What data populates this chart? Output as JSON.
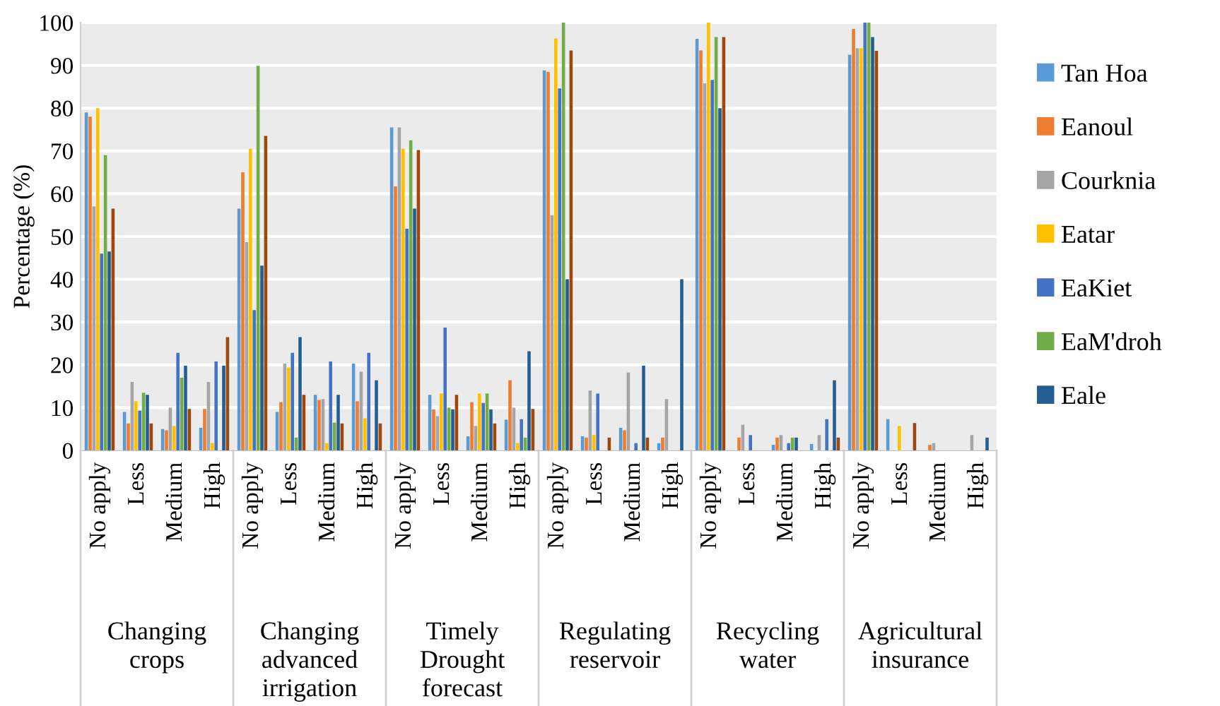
{
  "chart_data": {
    "type": "bar",
    "ylabel": "Percentage (%)",
    "categories": [
      "No apply",
      "Less",
      "Medium",
      "High",
      "No apply",
      "Less",
      "Medium",
      "High",
      "No apply",
      "Less",
      "Medium",
      "High",
      "No apply",
      "Less",
      "Medium",
      "High",
      "No apply",
      "Less",
      "Medium",
      "High",
      "No apply",
      "Less",
      "Medium",
      "High"
    ],
    "annotations": [
      "Changing\ncrops",
      "Changing\nadvanced\nirrigation",
      "Timely\nDrought\nforecast",
      "Regulating\nreservoir",
      "Recycling\nwater",
      "Agricultural\ninsurance"
    ],
    "series": [
      {
        "name": "Tan Hoa",
        "color": "#5b9bd5",
        "values": [
          79,
          9,
          5,
          5.3,
          56.5,
          9,
          13,
          20.3,
          75.5,
          13,
          3.3,
          7.2,
          88.8,
          3.3,
          5.3,
          1.7,
          96.2,
          0,
          1.3,
          1.5,
          92.5,
          7.3,
          0,
          0
        ]
      },
      {
        "name": "Eanoul",
        "color": "#ed7d31",
        "values": [
          78,
          6.3,
          4.7,
          9.7,
          65,
          11.3,
          11.8,
          11.5,
          61.7,
          9.6,
          11.3,
          16.4,
          88.5,
          3,
          4.7,
          3,
          93.5,
          3,
          3,
          0,
          98.5,
          0,
          1.3,
          0
        ]
      },
      {
        "name": "Courknia",
        "color": "#a5a5a5",
        "values": [
          57,
          16,
          10,
          16,
          48.7,
          20.3,
          12,
          18.4,
          75.5,
          8,
          5.7,
          10,
          55,
          14,
          18.2,
          12,
          85.8,
          6,
          3.6,
          3.6,
          94,
          0,
          1.7,
          3.6
        ]
      },
      {
        "name": "Eatar",
        "color": "#ffc000",
        "values": [
          80,
          11.5,
          5.7,
          1.7,
          70.5,
          19.4,
          1.7,
          7.5,
          70.5,
          13.3,
          13.3,
          1.7,
          96.3,
          3.6,
          0,
          0,
          100,
          0,
          0,
          0,
          94,
          5.7,
          0,
          0
        ]
      },
      {
        "name": "EaKiet",
        "color": "#4472c4",
        "values": [
          46,
          9.3,
          22.8,
          20.8,
          32.8,
          22.8,
          20.8,
          22.8,
          51.8,
          28.7,
          11.1,
          7.3,
          84.6,
          13.3,
          1.7,
          0,
          86.6,
          3.6,
          1.7,
          7.3,
          100,
          0,
          0,
          0
        ]
      },
      {
        "name": "EaM'droh",
        "color": "#70ad47",
        "values": [
          69,
          13.5,
          17,
          0,
          89.9,
          3,
          6.5,
          0,
          72.5,
          10,
          13.3,
          3,
          100,
          0,
          0,
          0,
          96.6,
          0,
          3,
          0,
          100,
          0,
          0,
          0
        ]
      },
      {
        "name": "Eale",
        "color": "#255e91",
        "values": [
          46.5,
          13,
          19.8,
          19.8,
          43.2,
          26.5,
          13,
          16.4,
          56.5,
          9.6,
          9.6,
          23.2,
          40,
          0,
          19.8,
          40,
          80,
          0,
          3,
          16.4,
          96.6,
          0,
          0,
          3
        ]
      },
      {
        "color": "#9e480e",
        "values": [
          56.5,
          6.3,
          9.7,
          26.5,
          73.5,
          13,
          6.3,
          6.3,
          70.2,
          13,
          6.3,
          9.7,
          93.5,
          3,
          3,
          0,
          96.6,
          0,
          0,
          3,
          93.4,
          6.4,
          0,
          0
        ]
      }
    ],
    "ylim": [
      0,
      100
    ],
    "yticks": [
      0,
      10,
      20,
      30,
      40,
      50,
      60,
      70,
      80,
      90,
      100
    ],
    "grid": "y",
    "legend": "right"
  }
}
